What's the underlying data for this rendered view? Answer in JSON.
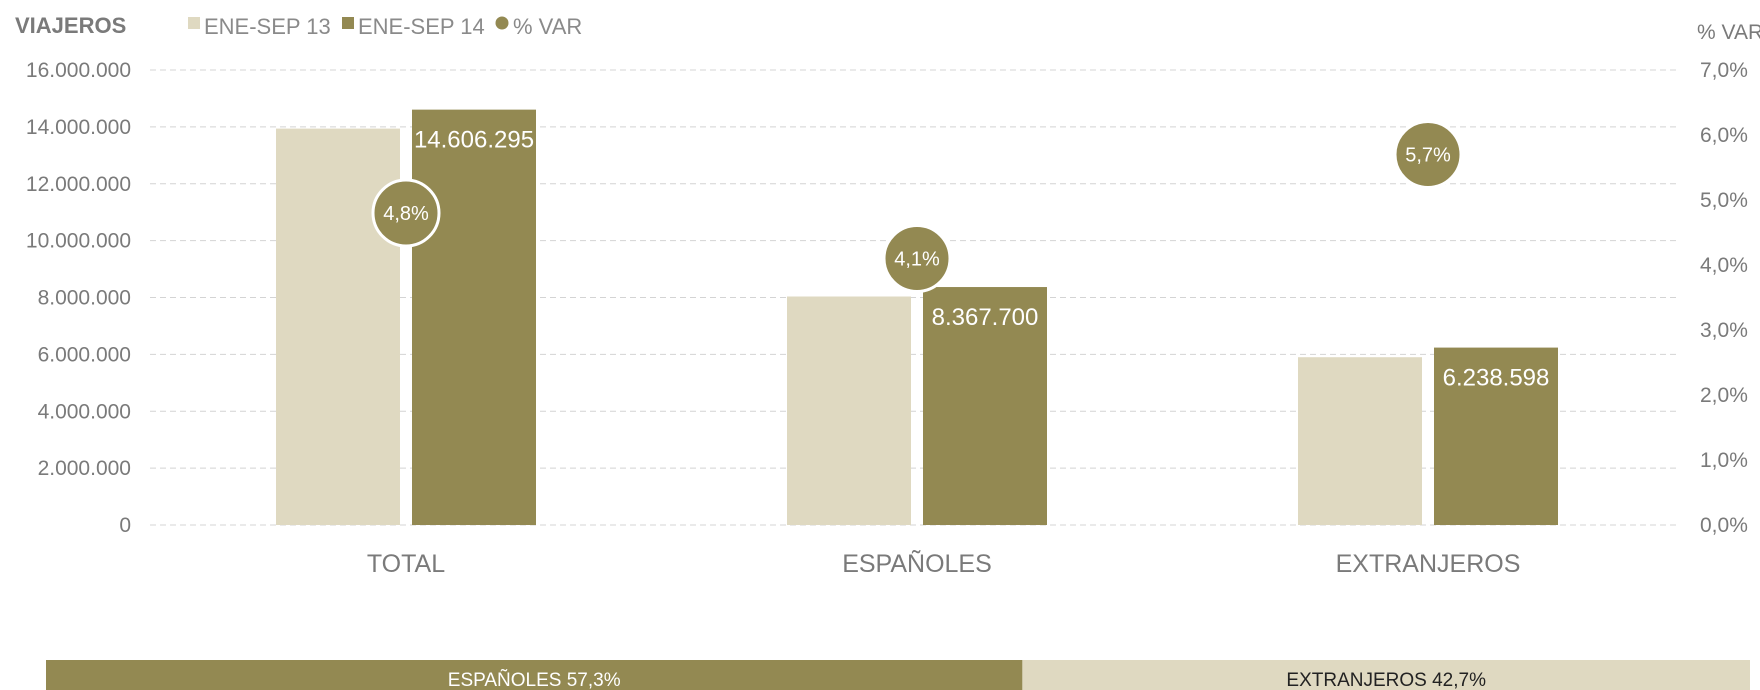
{
  "chart_data": {
    "type": "bar",
    "ylabel_left": "VIAJEROS",
    "ylabel_right": "% VAR",
    "categories": [
      "TOTAL",
      "ESPAÑOLES",
      "EXTRANJEROS"
    ],
    "series": [
      {
        "name": "ENE-SEP 13",
        "values": [
          13940000,
          8035000,
          5900000
        ],
        "color": "#dfd9c1"
      },
      {
        "name": "ENE-SEP 14",
        "values": [
          14606295,
          8367700,
          6238598
        ],
        "color": "#938952"
      },
      {
        "name": "% VAR",
        "values": [
          4.8,
          4.1,
          5.7
        ],
        "color": "#938952",
        "axis": "right"
      }
    ],
    "bar_labels": [
      "14.606.295",
      "8.367.700",
      "6.238.598"
    ],
    "var_labels": [
      "4,8%",
      "4,1%",
      "5,7%"
    ],
    "ylim_left": [
      0,
      16000000
    ],
    "ylim_right": [
      0,
      7
    ],
    "yticks_left": [
      "0",
      "2.000.000",
      "4.000.000",
      "6.000.000",
      "8.000.000",
      "10.000.000",
      "12.000.000",
      "14.000.000",
      "16.000.000"
    ],
    "yticks_right": [
      "0,0%",
      "1,0%",
      "2,0%",
      "3,0%",
      "4,0%",
      "5,0%",
      "6,0%",
      "7,0%"
    ],
    "grid": true,
    "legend_placement": "top-left",
    "share_bar": [
      {
        "label": "ESPAÑOLES 57,3%",
        "value": 57.3,
        "color": "#938952",
        "text_color": "#ffffff"
      },
      {
        "label": "EXTRANJEROS 42,7%",
        "value": 42.7,
        "color": "#dfd9c1",
        "text_color": "#222222"
      }
    ]
  }
}
